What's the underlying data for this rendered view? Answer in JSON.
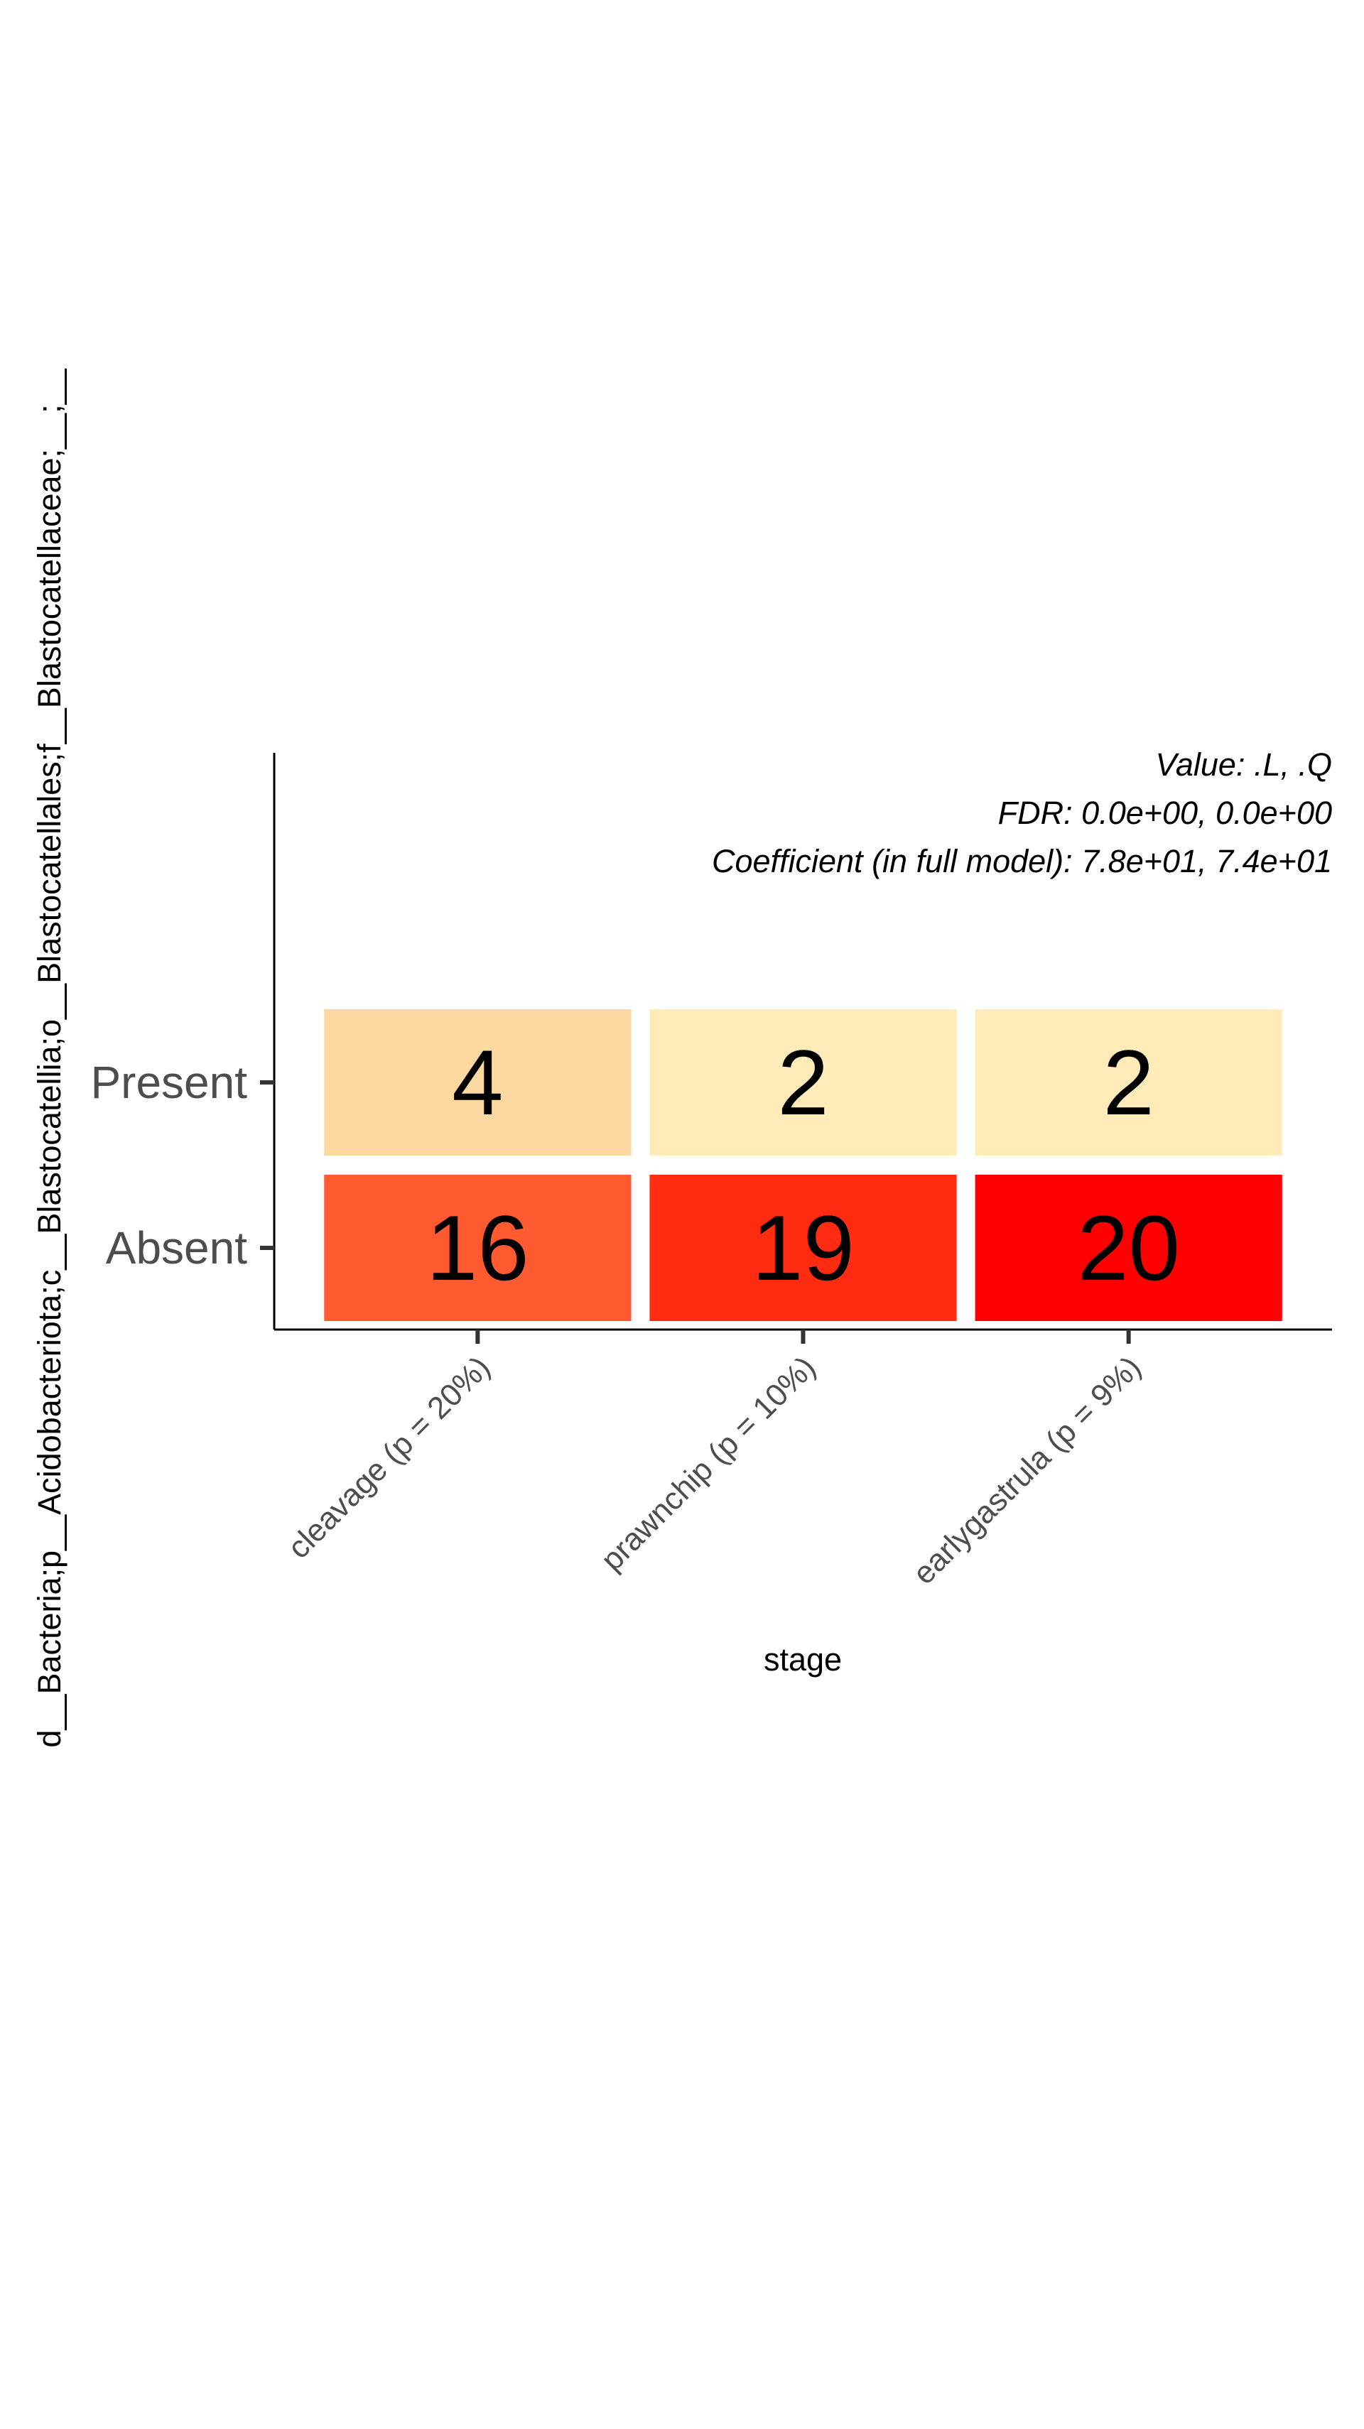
{
  "chart_data": {
    "type": "heatmap",
    "annotations": [
      "Value: .L, .Q",
      "FDR: 0.0e+00, 0.0e+00",
      "Coefficient (in full model): 7.8e+01, 7.4e+01"
    ],
    "xlabel": "stage",
    "ylabel": "d__Bacteria;p__Acidobacteriota;c__Blastocatellia;o__Blastocatellales;f__Blastocatellaceae;__;__",
    "x_categories": [
      "cleavage (p = 20%)",
      "prawnchip (p = 10%)",
      "earlygastrula (p = 9%)"
    ],
    "y_categories": [
      "Present",
      "Absent"
    ],
    "values": [
      [
        4,
        2,
        2
      ],
      [
        16,
        19,
        20
      ]
    ],
    "colors": [
      [
        "#fdd8a0",
        "#feebb8",
        "#feebb8"
      ],
      [
        "#ff5a30",
        "#ff2c12",
        "#ff0000"
      ]
    ],
    "grid": false,
    "legend": "none"
  }
}
